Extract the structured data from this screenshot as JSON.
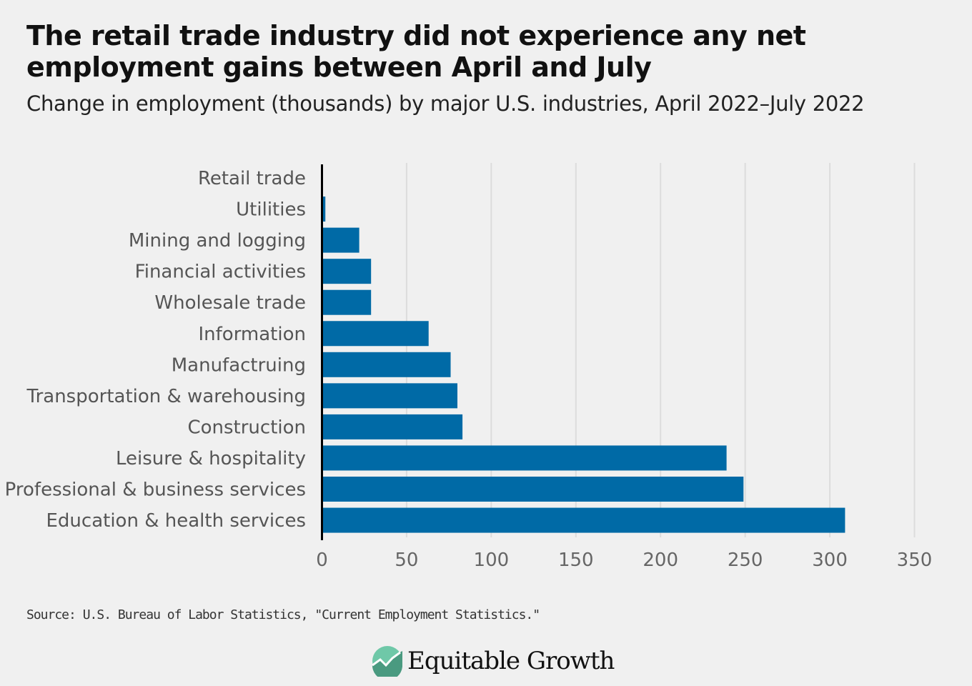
{
  "title": "The retail trade industry did not experience any net employment gains between April and July",
  "subtitle": "Change in employment (thousands) by major U.S. industries, April 2022–July 2022",
  "source": "Source: U.S. Bureau of Labor Statistics, \"Current Employment Statistics.\"",
  "logo": {
    "text": "Equitable Growth",
    "colors": [
      "#6fc8a8",
      "#4a9a80"
    ]
  },
  "chart_data": {
    "type": "bar",
    "orientation": "horizontal",
    "title": "The retail trade industry did not experience any net employment gains between April and July",
    "subtitle": "Change in employment (thousands) by major U.S. industries, April 2022–July 2022",
    "categories": [
      "Retail trade",
      "Utilities",
      "Mining and logging",
      "Financial activities",
      "Wholesale trade",
      "Information",
      "Manufactruing",
      "Transportation & warehousing",
      "Construction",
      "Leisure & hospitality",
      "Professional & business services",
      "Education & health services"
    ],
    "values": [
      0,
      2,
      22,
      29,
      29,
      63,
      76,
      80,
      83,
      239,
      249,
      309
    ],
    "xlim": [
      0,
      350
    ],
    "xticks": [
      "0",
      "50",
      "100",
      "150",
      "200",
      "250",
      "300",
      "350"
    ],
    "grid": "vertical",
    "bar_color": "#006aa6"
  }
}
